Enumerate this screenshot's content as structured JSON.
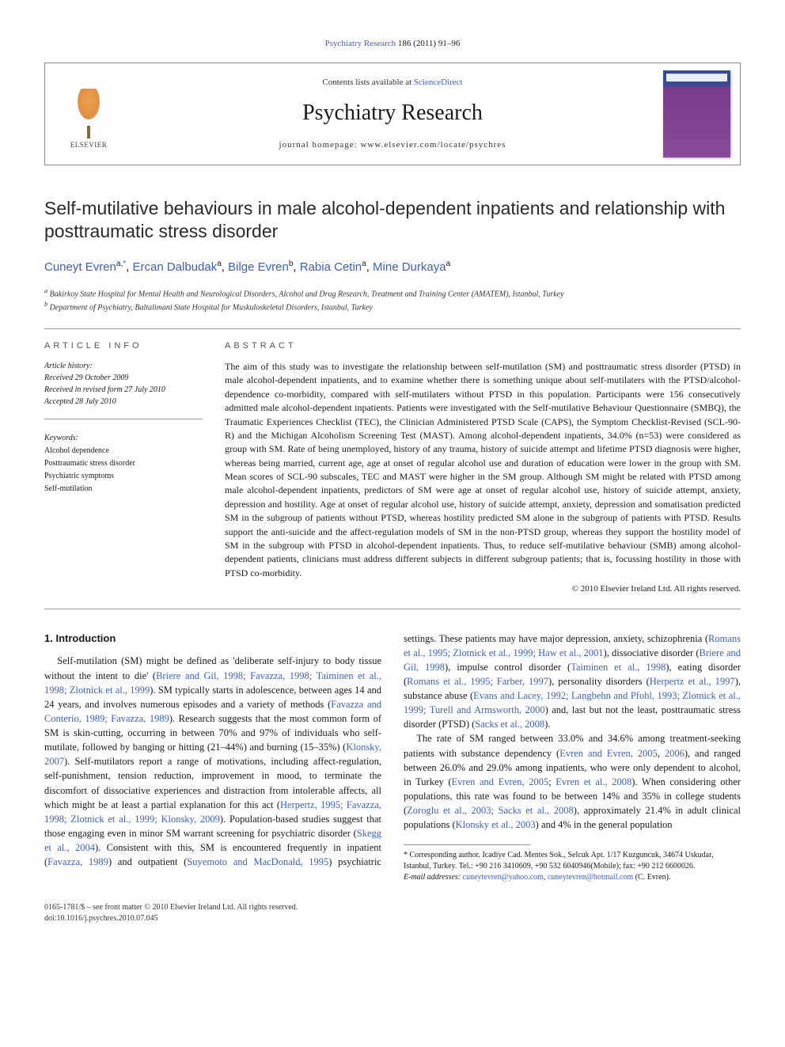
{
  "topLink": {
    "journal": "Psychiatry Research",
    "citation": "186 (2011) 91–96"
  },
  "header": {
    "contentsPrefix": "Contents lists available at ",
    "contentsLink": "ScienceDirect",
    "journalTitle": "Psychiatry Research",
    "homepagePrefix": "journal homepage: ",
    "homepageUrl": "www.elsevier.com/locate/psychres",
    "publisher": "ELSEVIER"
  },
  "article": {
    "title": "Self-mutilative behaviours in male alcohol-dependent inpatients and relationship with posttraumatic stress disorder",
    "authors": [
      {
        "name": "Cuneyt Evren",
        "aff": "a,",
        "corr": "*"
      },
      {
        "name": "Ercan Dalbudak",
        "aff": "a"
      },
      {
        "name": "Bilge Evren",
        "aff": "b"
      },
      {
        "name": "Rabia Cetin",
        "aff": "a"
      },
      {
        "name": "Mine Durkaya",
        "aff": "a"
      }
    ],
    "affiliations": [
      {
        "marker": "a",
        "text": "Bakirkoy State Hospital for Mental Health and Neurological Disorders, Alcohol and Drug Research, Treatment and Training Center (AMATEM), Istanbul, Turkey"
      },
      {
        "marker": "b",
        "text": "Department of Psychiatry, Baltalimani State Hospital for Muskuloskeletal Disorders, Istanbul, Turkey"
      }
    ]
  },
  "info": {
    "heading": "ARTICLE INFO",
    "history": {
      "label": "Article history:",
      "received": "Received 29 October 2009",
      "revised": "Received in revised form 27 July 2010",
      "accepted": "Accepted 28 July 2010"
    },
    "keywords": {
      "label": "Keywords:",
      "items": [
        "Alcohol dependence",
        "Posttraumatic stress disorder",
        "Psychiatric symptoms",
        "Self-mutilation"
      ]
    }
  },
  "abstract": {
    "heading": "ABSTRACT",
    "text": "The aim of this study was to investigate the relationship between self-mutilation (SM) and posttraumatic stress disorder (PTSD) in male alcohol-dependent inpatients, and to examine whether there is something unique about self-mutilaters with the PTSD/alcohol-dependence co-morbidity, compared with self-mutilaters without PTSD in this population. Participants were 156 consecutively admitted male alcohol-dependent inpatients. Patients were investigated with the Self-mutilative Behaviour Questionnaire (SMBQ), the Traumatic Experiences Checklist (TEC), the Clinician Administered PTSD Scale (CAPS), the Symptom Checklist-Revised (SCL-90-R) and the Michigan Alcoholism Screening Test (MAST). Among alcohol-dependent inpatients, 34.0% (n=53) were considered as group with SM. Rate of being unemployed, history of any trauma, history of suicide attempt and lifetime PTSD diagnosis were higher, whereas being married, current age, age at onset of regular alcohol use and duration of education were lower in the group with SM. Mean scores of SCL-90 subscales, TEC and MAST were higher in the SM group. Although SM might be related with PTSD among male alcohol-dependent inpatients, predictors of SM were age at onset of regular alcohol use, history of suicide attempt, anxiety, depression and hostility. Age at onset of regular alcohol use, history of suicide attempt, anxiety, depression and somatisation predicted SM in the subgroup of patients without PTSD, whereas hostility predicted SM alone in the subgroup of patients with PTSD. Results support the anti-suicide and the affect-regulation models of SM in the non-PTSD group, whereas they support the hostility model of SM in the subgroup with PTSD in alcohol-dependent inpatients. Thus, to reduce self-mutilative behaviour (SMB) among alcohol-dependent patients, clinicians must address different subjects in different subgroup patients; that is, focussing hostility in those with PTSD co-morbidity.",
    "copyright": "© 2010 Elsevier Ireland Ltd. All rights reserved."
  },
  "body": {
    "introHeading": "1. Introduction",
    "p1a": "Self-mutilation (SM) might be defined as 'deliberate self-injury to body tissue without the intent to die' (",
    "p1link1": "Briere and Gil, 1998; Favazza, 1998; Taiminen et al., 1998; Zlotnick et al., 1999",
    "p1b": "). SM typically starts in adolescence, between ages 14 and 24 years, and involves numerous episodes and a variety of methods (",
    "p1link2": "Favazza and Conterio, 1989; Favazza, 1989",
    "p1c": "). Research suggests that the most common form of SM is skin-cutting, occurring in between 70% and 97% of individuals who self-mutilate, followed by banging or hitting (21–44%) and burning (15–35%) (",
    "p1link3": "Klonsky, 2007",
    "p1d": "). Self-mutilators report a range of motivations, including affect-regulation, self-punishment, tension reduction, improvement in mood, to terminate the discomfort of dissociative experiences and distraction from intolerable affects, all which might be at least a partial explanation for this act (",
    "p1link4": "Herpertz, 1995; Favazza, 1998; Zlotnick et al.,",
    "p2link1cont": "1999; Klonsky, 2009",
    "p2a": "). Population-based studies suggest that those engaging even in minor SM warrant screening for psychiatric disorder (",
    "p2link2": "Skegg et al., 2004",
    "p2b": "). Consistent with this, SM is encountered frequently in inpatient (",
    "p2link3": "Favazza, 1989",
    "p2c": ") and outpatient (",
    "p2link4": "Suyemoto and MacDonald, 1995",
    "p2d": ") psychiatric settings. These patients may have major depression, anxiety, schizophrenia (",
    "p2link5": "Romans et al., 1995; Zlotnick et al., 1999; Haw et al., 2001",
    "p2e": "), dissociative disorder (",
    "p2link6": "Briere and Gil, 1998",
    "p2f": "), impulse control disorder (",
    "p2link7": "Taiminen et al., 1998",
    "p2g": "), eating disorder (",
    "p2link8": "Romans et al., 1995; Farber, 1997",
    "p2h": "), personality disorders (",
    "p2link9": "Herpertz et al., 1997",
    "p2i": "), substance abuse (",
    "p2link10": "Evans and Lacey, 1992; Langbehn and Pfohl, 1993; Zlotnick et al., 1999; Turell and Armsworth, 2000",
    "p2j": ") and, last but not the least, posttraumatic stress disorder (PTSD) (",
    "p2link11": "Sacks et al., 2008",
    "p2k": ").",
    "p3a": "The rate of SM ranged between 33.0% and 34.6% among treatment-seeking patients with substance dependency (",
    "p3link1": "Evren and Evren, 2005",
    "p3b": ", ",
    "p3link2": "2006",
    "p3c": "), and ranged between 26.0% and 29.0% among inpatients, who were only dependent to alcohol, in Turkey (",
    "p3link3": "Evren and Evren, 2005",
    "p3d": "; ",
    "p3link4": "Evren et al., 2008",
    "p3e": "). When considering other populations, this rate was found to be between 14% and 35% in college students (",
    "p3link5": "Zoroglu et al., 2003; Sacks et al., 2008",
    "p3f": "), approximately 21.4% in adult clinical populations (",
    "p3link6": "Klonsky et al., 2003",
    "p3g": ") and 4% in the general population"
  },
  "footnote": {
    "corrLabel": "* Corresponding author. ",
    "corrText": "Icadiye Cad. Mentes Sok., Selcuk Apt. 1/17 Kuzguncuk, 34674 Uskudar, Istanbul, Turkey. Tel.: +90 216 3410609, +90 532 6040946(Mobile); fax: +90 212 6600026.",
    "emailLabel": "E-mail addresses: ",
    "email1": "cuneytevren@yahoo.com",
    "emailSep": ", ",
    "email2": "cuneytevren@hotmail.com",
    "emailSuffix": " (C. Evren)."
  },
  "bottom": {
    "left": "0165-1781/$ – see front matter © 2010 Elsevier Ireland Ltd. All rights reserved.",
    "doi": "doi:10.1016/j.psychres.2010.07.045"
  }
}
